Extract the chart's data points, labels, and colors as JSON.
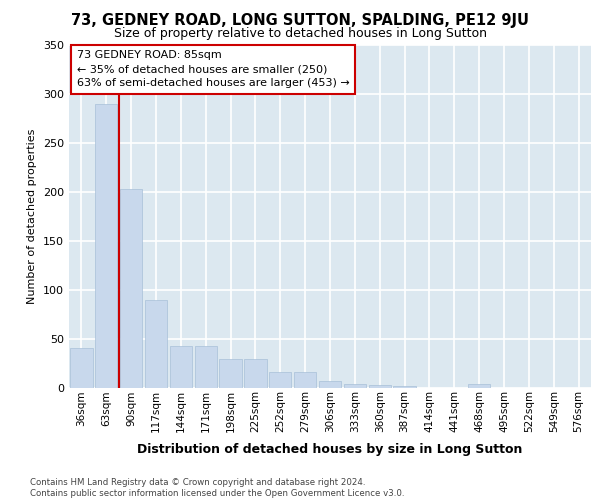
{
  "title": "73, GEDNEY ROAD, LONG SUTTON, SPALDING, PE12 9JU",
  "subtitle": "Size of property relative to detached houses in Long Sutton",
  "xlabel": "Distribution of detached houses by size in Long Sutton",
  "ylabel": "Number of detached properties",
  "footer_line1": "Contains HM Land Registry data © Crown copyright and database right 2024.",
  "footer_line2": "Contains public sector information licensed under the Open Government Licence v3.0.",
  "categories": [
    "36sqm",
    "63sqm",
    "90sqm",
    "117sqm",
    "144sqm",
    "171sqm",
    "198sqm",
    "225sqm",
    "252sqm",
    "279sqm",
    "306sqm",
    "333sqm",
    "360sqm",
    "387sqm",
    "414sqm",
    "441sqm",
    "468sqm",
    "495sqm",
    "522sqm",
    "549sqm",
    "576sqm"
  ],
  "values": [
    40,
    290,
    203,
    89,
    42,
    42,
    29,
    29,
    16,
    16,
    7,
    4,
    3,
    2,
    0,
    0,
    4,
    0,
    0,
    0,
    0
  ],
  "bar_color": "#c8d8ec",
  "bar_edge_color": "#a8c0d8",
  "annotation_line1": "73 GEDNEY ROAD: 85sqm",
  "annotation_line2": "← 35% of detached houses are smaller (250)",
  "annotation_line3": "63% of semi-detached houses are larger (453) →",
  "red_line_color": "#cc0000",
  "annotation_box_color": "#cc0000",
  "ylim": [
    0,
    350
  ],
  "background_color": "#dce8f0",
  "grid_color": "#ffffff",
  "title_fontsize": 10.5,
  "subtitle_fontsize": 9
}
